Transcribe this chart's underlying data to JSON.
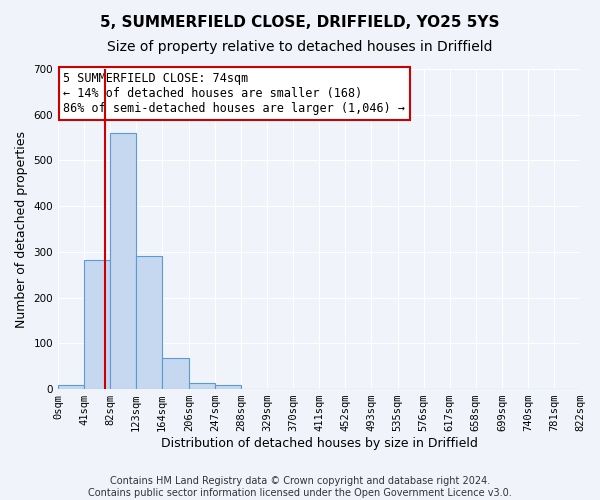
{
  "title": "5, SUMMERFIELD CLOSE, DRIFFIELD, YO25 5YS",
  "subtitle": "Size of property relative to detached houses in Driffield",
  "xlabel": "Distribution of detached houses by size in Driffield",
  "ylabel": "Number of detached properties",
  "bin_edges": [
    0,
    41,
    82,
    123,
    164,
    206,
    247,
    288,
    329,
    370,
    411,
    452,
    493,
    535,
    576,
    617,
    658,
    699,
    740,
    781,
    822
  ],
  "bin_counts": [
    8,
    282,
    560,
    292,
    68,
    13,
    8,
    0,
    0,
    0,
    0,
    0,
    0,
    0,
    0,
    0,
    0,
    0,
    0,
    0
  ],
  "bar_color": "#c5d8f0",
  "bar_edge_color": "#5b9bd5",
  "property_value": 74,
  "vline_color": "#cc0000",
  "annotation_line1": "5 SUMMERFIELD CLOSE: 74sqm",
  "annotation_line2": "← 14% of detached houses are smaller (168)",
  "annotation_line3": "86% of semi-detached houses are larger (1,046) →",
  "annotation_box_edge_color": "#cc0000",
  "annotation_box_bg": "#ffffff",
  "ylim": [
    0,
    700
  ],
  "yticks": [
    0,
    100,
    200,
    300,
    400,
    500,
    600,
    700
  ],
  "tick_labels": [
    "0sqm",
    "41sqm",
    "82sqm",
    "123sqm",
    "164sqm",
    "206sqm",
    "247sqm",
    "288sqm",
    "329sqm",
    "370sqm",
    "411sqm",
    "452sqm",
    "493sqm",
    "535sqm",
    "576sqm",
    "617sqm",
    "658sqm",
    "699sqm",
    "740sqm",
    "781sqm",
    "822sqm"
  ],
  "footer_line1": "Contains HM Land Registry data © Crown copyright and database right 2024.",
  "footer_line2": "Contains public sector information licensed under the Open Government Licence v3.0.",
  "background_color": "#f0f4fa",
  "grid_color": "#ffffff",
  "title_fontsize": 11,
  "subtitle_fontsize": 10,
  "axis_label_fontsize": 9,
  "tick_fontsize": 7.5,
  "footer_fontsize": 7
}
